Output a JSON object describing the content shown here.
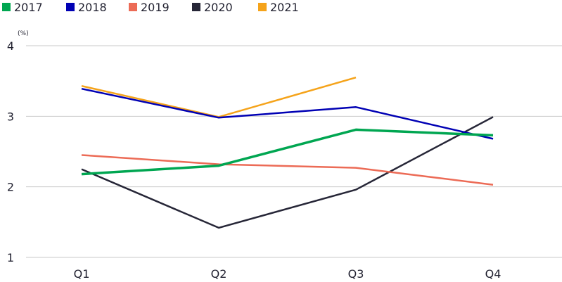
{
  "chart_data": {
    "type": "line",
    "categories": [
      "Q1",
      "Q2",
      "Q3",
      "Q4"
    ],
    "series": [
      {
        "name": "2017",
        "color": "#00a651",
        "values": [
          2.18,
          2.3,
          2.81,
          2.73
        ]
      },
      {
        "name": "2018",
        "color": "#0000b4",
        "values": [
          3.39,
          2.98,
          3.13,
          2.68
        ]
      },
      {
        "name": "2019",
        "color": "#ec6b56",
        "values": [
          2.45,
          2.32,
          2.27,
          2.03
        ]
      },
      {
        "name": "2020",
        "color": "#262637",
        "values": [
          2.25,
          1.42,
          1.96,
          2.99
        ]
      },
      {
        "name": "2021",
        "color": "#f5a31a",
        "values": [
          3.43,
          2.99,
          3.55,
          null
        ]
      }
    ],
    "ylabel": "(%)",
    "ylim": [
      1,
      4
    ],
    "yticks": [
      "1",
      "2",
      "3",
      "4"
    ],
    "grid": true,
    "legend_position": "top-left"
  }
}
